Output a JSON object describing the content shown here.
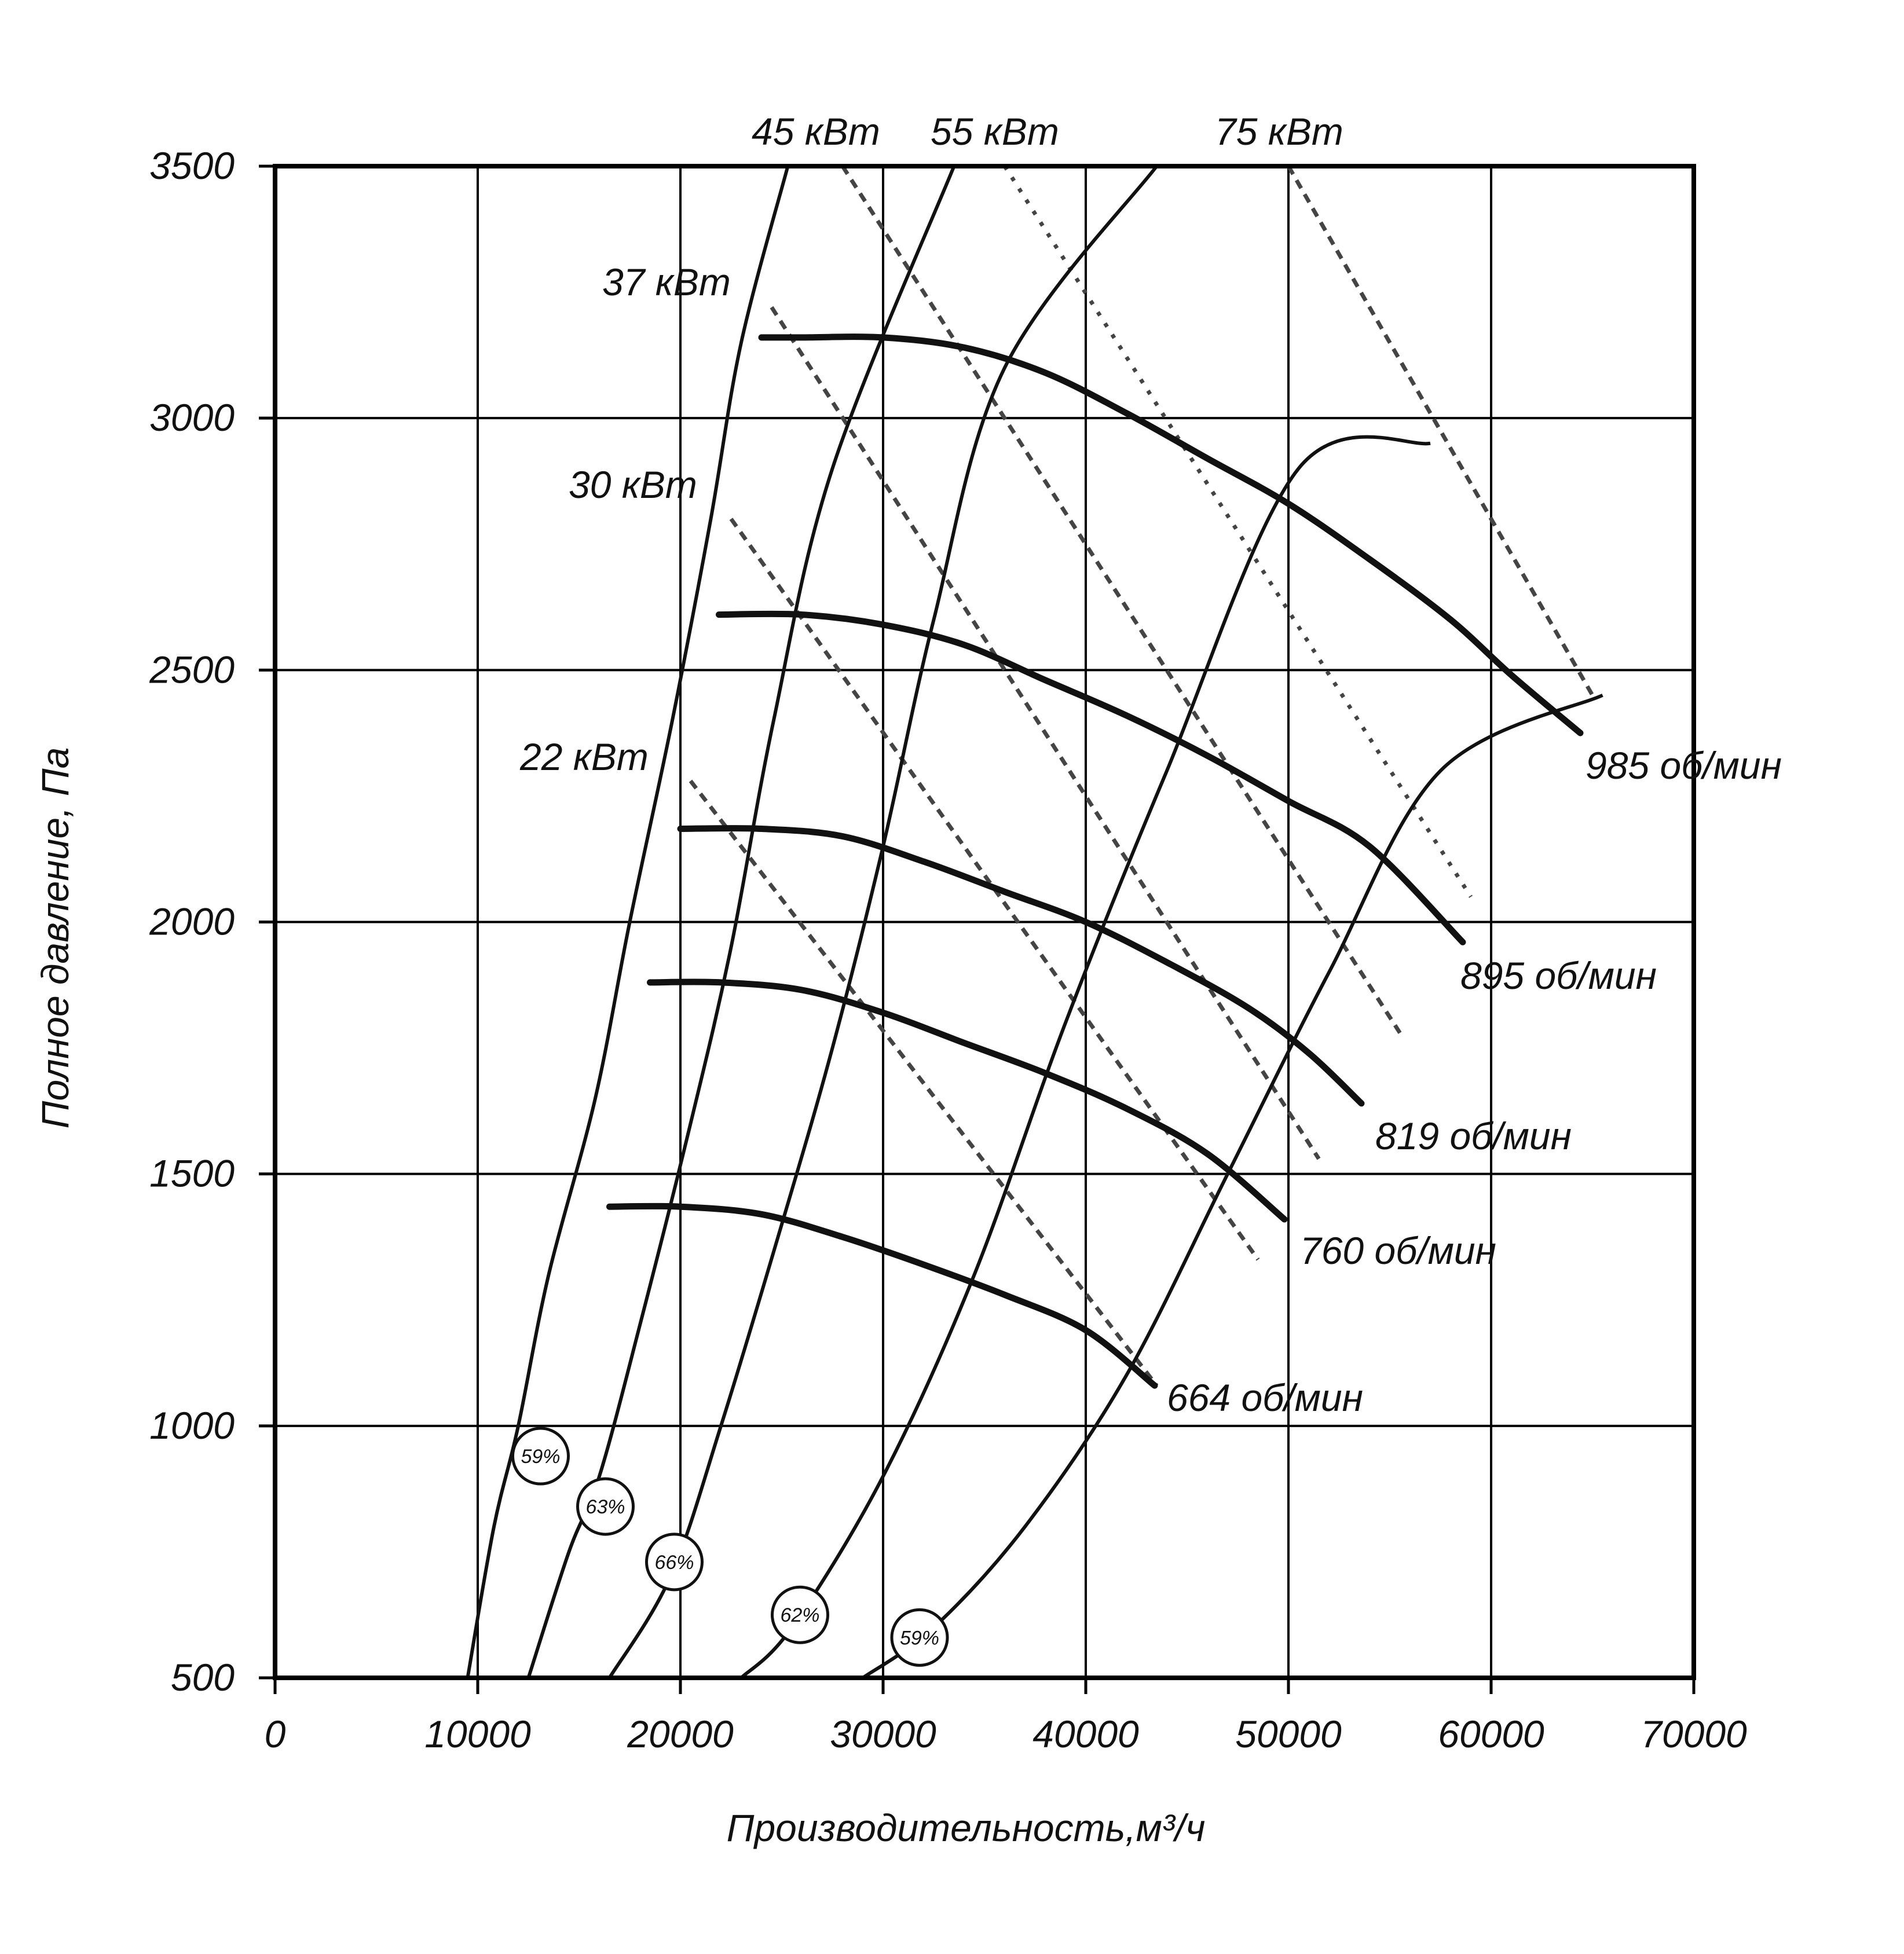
{
  "chart_data": {
    "type": "line",
    "title": "",
    "xlabel": "Производительность,м³/ч",
    "ylabel": "Полное давление, Па",
    "xlim": [
      0,
      70000
    ],
    "ylim": [
      500,
      3500
    ],
    "xticks": [
      "0",
      "10000",
      "20000",
      "30000",
      "40000",
      "50000",
      "60000",
      "70000"
    ],
    "yticks": [
      "500",
      "1000",
      "1500",
      "2000",
      "2500",
      "3000",
      "3500"
    ],
    "grid": true,
    "colors": {
      "line": "#111111",
      "power": "#444444",
      "grid": "#000000"
    },
    "speed_curves": [
      {
        "name": "985 об/мин",
        "points": [
          [
            24000,
            3160
          ],
          [
            26000,
            3160
          ],
          [
            30000,
            3160
          ],
          [
            34000,
            3140
          ],
          [
            38000,
            3090
          ],
          [
            42000,
            3010
          ],
          [
            46000,
            2920
          ],
          [
            50000,
            2830
          ],
          [
            54000,
            2720
          ],
          [
            58000,
            2600
          ],
          [
            61000,
            2490
          ],
          [
            64400,
            2375
          ]
        ]
      },
      {
        "name": "895 об/мин",
        "points": [
          [
            21900,
            2610
          ],
          [
            26000,
            2610
          ],
          [
            30000,
            2590
          ],
          [
            34000,
            2550
          ],
          [
            38000,
            2480
          ],
          [
            42000,
            2410
          ],
          [
            46000,
            2330
          ],
          [
            50000,
            2240
          ],
          [
            54000,
            2150
          ],
          [
            58600,
            1960
          ]
        ]
      },
      {
        "name": "819 об/мин",
        "points": [
          [
            20000,
            2185
          ],
          [
            24000,
            2185
          ],
          [
            28000,
            2170
          ],
          [
            32000,
            2120
          ],
          [
            36000,
            2060
          ],
          [
            40000,
            2000
          ],
          [
            44000,
            1920
          ],
          [
            48000,
            1830
          ],
          [
            51000,
            1740
          ],
          [
            53600,
            1640
          ]
        ]
      },
      {
        "name": "760 об/мин",
        "points": [
          [
            18500,
            1880
          ],
          [
            22000,
            1880
          ],
          [
            26000,
            1865
          ],
          [
            30000,
            1820
          ],
          [
            34000,
            1760
          ],
          [
            38000,
            1700
          ],
          [
            42000,
            1630
          ],
          [
            46000,
            1540
          ],
          [
            49800,
            1410
          ]
        ]
      },
      {
        "name": "664 об/мин",
        "points": [
          [
            16500,
            1435
          ],
          [
            20000,
            1435
          ],
          [
            24000,
            1420
          ],
          [
            28000,
            1375
          ],
          [
            32000,
            1320
          ],
          [
            36000,
            1260
          ],
          [
            40000,
            1190
          ],
          [
            43400,
            1080
          ]
        ]
      }
    ],
    "system_curves": [
      {
        "name": "59%",
        "points": [
          [
            9500,
            500
          ],
          [
            10800,
            800
          ],
          [
            12000,
            1000
          ],
          [
            13500,
            1300
          ],
          [
            15800,
            1650
          ],
          [
            17500,
            2000
          ],
          [
            19600,
            2400
          ],
          [
            21500,
            2800
          ],
          [
            23000,
            3150
          ],
          [
            25300,
            3500
          ]
        ]
      },
      {
        "name": "63%",
        "points": [
          [
            12500,
            500
          ],
          [
            14500,
            750
          ],
          [
            16000,
            900
          ],
          [
            18000,
            1200
          ],
          [
            20500,
            1600
          ],
          [
            22500,
            1950
          ],
          [
            24600,
            2400
          ],
          [
            27500,
            2900
          ],
          [
            33500,
            3500
          ]
        ]
      },
      {
        "name": "66%",
        "points": [
          [
            16500,
            500
          ],
          [
            19500,
            700
          ],
          [
            22000,
            1000
          ],
          [
            25000,
            1400
          ],
          [
            27500,
            1750
          ],
          [
            30000,
            2150
          ],
          [
            32500,
            2600
          ],
          [
            36000,
            3100
          ],
          [
            43500,
            3500
          ]
        ]
      },
      {
        "name": "62%",
        "points": [
          [
            23000,
            500
          ],
          [
            25500,
            600
          ],
          [
            30000,
            900
          ],
          [
            34500,
            1300
          ],
          [
            39000,
            1800
          ],
          [
            44000,
            2300
          ],
          [
            50500,
            2900
          ],
          [
            57000,
            2950
          ]
        ]
      },
      {
        "name": "59%",
        "points": [
          [
            29000,
            500
          ],
          [
            32500,
            600
          ],
          [
            37000,
            800
          ],
          [
            42000,
            1100
          ],
          [
            47000,
            1500
          ],
          [
            52000,
            1900
          ],
          [
            57500,
            2300
          ],
          [
            65500,
            2450
          ]
        ]
      }
    ],
    "power_lines": [
      {
        "name": "22 кВт",
        "style": "dashed",
        "points": [
          [
            20500,
            2280
          ],
          [
            43500,
            1080
          ]
        ]
      },
      {
        "name": "30 кВт",
        "style": "dashed",
        "points": [
          [
            22500,
            2800
          ],
          [
            48500,
            1330
          ]
        ]
      },
      {
        "name": "37 кВт",
        "style": "dashed",
        "points": [
          [
            24500,
            3220
          ],
          [
            51500,
            1530
          ]
        ]
      },
      {
        "name": "45 кВт",
        "style": "dashed",
        "points": [
          [
            28000,
            3500
          ],
          [
            55500,
            1780
          ]
        ]
      },
      {
        "name": "55 кВт",
        "style": "dotted",
        "points": [
          [
            36000,
            3500
          ],
          [
            59000,
            2050
          ]
        ]
      },
      {
        "name": "75 кВт",
        "style": "dashed",
        "points": [
          [
            50000,
            3500
          ],
          [
            65000,
            2450
          ]
        ]
      }
    ],
    "speed_labels": [
      "985 об/мин",
      "895 об/мин",
      "819 об/мин",
      "760 об/мин",
      "664 об/мин"
    ],
    "power_labels": [
      "45 кВт",
      "55 кВт",
      "75 кВт",
      "37 кВт",
      "30 кВт",
      "22 кВт"
    ],
    "efficiency_markers": [
      {
        "label": "59%",
        "x": 13100,
        "y": 940
      },
      {
        "label": "63%",
        "x": 16300,
        "y": 840
      },
      {
        "label": "66%",
        "x": 19700,
        "y": 730
      },
      {
        "label": "62%",
        "x": 25900,
        "y": 625
      },
      {
        "label": "59%",
        "x": 31800,
        "y": 580
      }
    ]
  }
}
